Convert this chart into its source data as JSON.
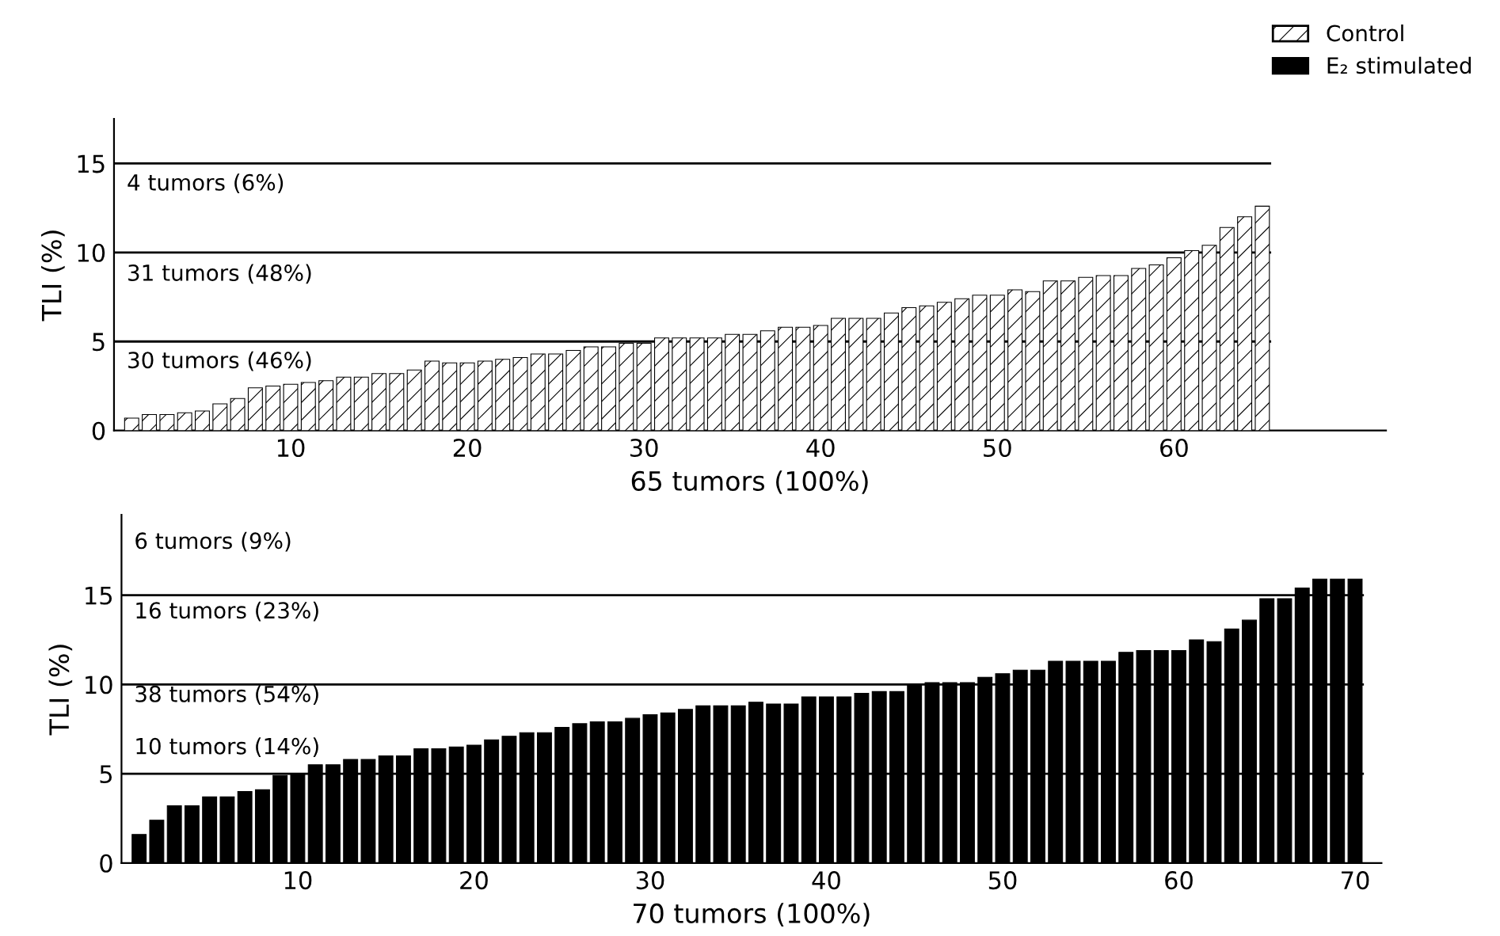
{
  "chart_data": [
    {
      "type": "bar",
      "xlabel": "65 tumors (100%)",
      "ylabel": "TLI (%)",
      "xlim": [
        0,
        72
      ],
      "ylim": [
        0,
        17.5
      ],
      "xticks": [
        10,
        20,
        30,
        40,
        50,
        60
      ],
      "yticks": [
        0,
        5,
        10,
        15
      ],
      "grid": false,
      "legend": "top right",
      "x": [
        1,
        2,
        3,
        4,
        5,
        6,
        7,
        8,
        9,
        10,
        11,
        12,
        13,
        14,
        15,
        16,
        17,
        18,
        19,
        20,
        21,
        22,
        23,
        24,
        25,
        26,
        27,
        28,
        29,
        30,
        31,
        32,
        33,
        34,
        35,
        36,
        37,
        38,
        39,
        40,
        41,
        42,
        43,
        44,
        45,
        46,
        47,
        48,
        49,
        50,
        51,
        52,
        53,
        54,
        55,
        56,
        57,
        58,
        59,
        60,
        61,
        62,
        63,
        64,
        65
      ],
      "series": [
        {
          "name": "Control",
          "color": "#000000",
          "values": [
            0.7,
            0.9,
            0.9,
            1.0,
            1.1,
            1.5,
            1.8,
            2.4,
            2.5,
            2.6,
            2.7,
            2.8,
            3.0,
            3.0,
            3.2,
            3.2,
            3.4,
            3.9,
            3.8,
            3.8,
            3.9,
            4.0,
            4.1,
            4.3,
            4.3,
            4.5,
            4.7,
            4.7,
            4.9,
            4.9,
            5.2,
            5.2,
            5.2,
            5.2,
            5.4,
            5.4,
            5.6,
            5.8,
            5.8,
            5.9,
            6.3,
            6.3,
            6.3,
            6.6,
            6.9,
            7.0,
            7.2,
            7.4,
            7.6,
            7.6,
            7.9,
            7.8,
            8.4,
            8.4,
            8.6,
            8.7,
            8.7,
            9.1,
            9.3,
            9.7,
            10.1,
            10.4,
            11.4,
            12.0,
            12.6
          ]
        }
      ],
      "ref_lines": [
        {
          "axis": "y",
          "value": 5
        },
        {
          "axis": "y",
          "value": 10
        },
        {
          "axis": "y",
          "value": 15
        }
      ],
      "annotations": [
        "4 tumors (6%)",
        "31 tumors (48%)",
        "30 tumors (46%)"
      ]
    },
    {
      "type": "bar",
      "xlabel": "70 tumors (100%)",
      "ylabel": "TLI (%)",
      "xlim": [
        0,
        71.5
      ],
      "ylim": [
        0,
        19.5
      ],
      "xticks": [
        10,
        20,
        30,
        40,
        50,
        60,
        70
      ],
      "yticks": [
        0,
        5,
        10,
        15
      ],
      "grid": false,
      "legend": "top right",
      "x": [
        1,
        2,
        3,
        4,
        5,
        6,
        7,
        8,
        9,
        10,
        11,
        12,
        13,
        14,
        15,
        16,
        17,
        18,
        19,
        20,
        21,
        22,
        23,
        24,
        25,
        26,
        27,
        28,
        29,
        30,
        31,
        32,
        33,
        34,
        35,
        36,
        37,
        38,
        39,
        40,
        41,
        42,
        43,
        44,
        45,
        46,
        47,
        48,
        49,
        50,
        51,
        52,
        53,
        54,
        55,
        56,
        57,
        58,
        59,
        60,
        61,
        62,
        63,
        64,
        65,
        66,
        67,
        68,
        69,
        70
      ],
      "series": [
        {
          "name": "E₂ stimulated",
          "color": "#000000",
          "values": [
            1.6,
            2.4,
            3.2,
            3.2,
            3.7,
            3.7,
            4.0,
            4.1,
            4.9,
            5.0,
            5.5,
            5.5,
            5.8,
            5.8,
            6.0,
            6.0,
            6.4,
            6.4,
            6.5,
            6.6,
            6.9,
            7.1,
            7.3,
            7.3,
            7.6,
            7.8,
            7.9,
            7.9,
            8.1,
            8.3,
            8.4,
            8.6,
            8.8,
            8.8,
            8.8,
            9.0,
            8.9,
            8.9,
            9.3,
            9.3,
            9.3,
            9.5,
            9.6,
            9.6,
            10.0,
            10.1,
            10.1,
            10.1,
            10.4,
            10.6,
            10.8,
            10.8,
            11.3,
            11.3,
            11.3,
            11.3,
            11.8,
            11.9,
            11.9,
            11.9,
            12.5,
            12.4,
            13.1,
            13.6,
            14.8,
            14.8,
            15.4,
            15.9,
            15.9,
            15.9
          ]
        }
      ],
      "ref_lines": [
        {
          "axis": "y",
          "value": 5
        },
        {
          "axis": "y",
          "value": 10
        },
        {
          "axis": "y",
          "value": 15
        }
      ],
      "annotations": [
        "6 tumors (9%)",
        "16 tumors (23%)",
        "38 tumors (54%)",
        "10 tumors (14%)"
      ]
    }
  ]
}
